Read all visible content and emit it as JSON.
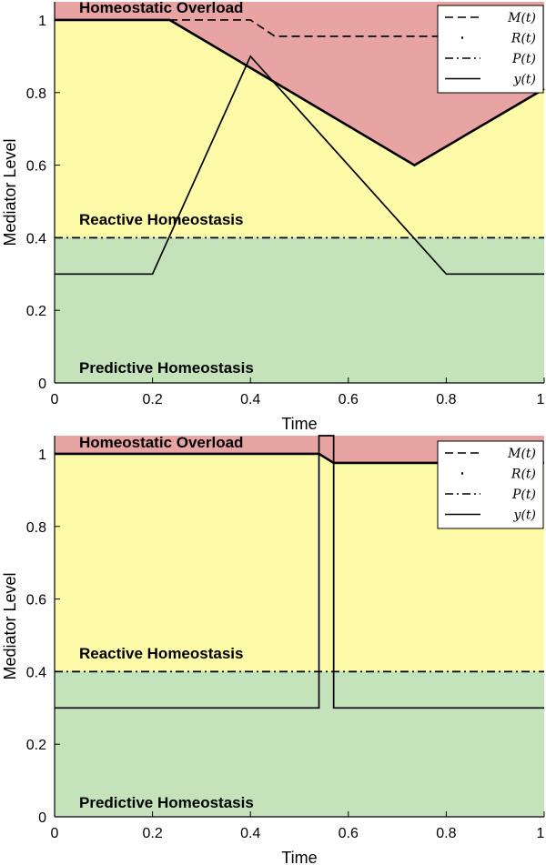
{
  "chart_data": [
    {
      "type": "line",
      "xlabel": "Time",
      "ylabel": "Mediator Level",
      "xlim": [
        0,
        1
      ],
      "ylim": [
        0,
        1.05
      ],
      "xticks": [
        0,
        0.2,
        0.4,
        0.6,
        0.8,
        1
      ],
      "xtick_labels": [
        "0",
        "0.2",
        "0.4",
        "0.6",
        "0.8",
        "1"
      ],
      "yticks": [
        0,
        0.2,
        0.4,
        0.6,
        0.8,
        1
      ],
      "ytick_labels": [
        "0",
        "0.2",
        "0.4",
        "0.6",
        "0.8",
        "1"
      ],
      "regions": [
        {
          "label": "Homeostatic Overload",
          "color": "#e8a3a3"
        },
        {
          "label": "Reactive Homeostasis",
          "color": "#fdfaa8"
        },
        {
          "label": "Predictive Homeostasis",
          "color": "#c4e3bb"
        }
      ],
      "legend": {
        "position": "top-right",
        "entries": [
          {
            "label": "M(t)",
            "style": "dashed"
          },
          {
            "label": "R(t)",
            "style": "dotted"
          },
          {
            "label": "P(t)",
            "style": "dashdot"
          },
          {
            "label": "y(t)",
            "style": "solid"
          }
        ]
      },
      "series": [
        {
          "key": "M",
          "style": "dashed",
          "x": [
            0,
            0.4,
            0.45,
            1
          ],
          "y": [
            1,
            1,
            0.955,
            0.955
          ]
        },
        {
          "key": "R",
          "style": "solid-thick",
          "x": [
            0,
            0.235,
            0.735,
            1
          ],
          "y": [
            1,
            1,
            0.6,
            0.81
          ]
        },
        {
          "key": "P",
          "style": "dashdot",
          "x": [
            0,
            1
          ],
          "y": [
            0.4,
            0.4
          ]
        },
        {
          "key": "y",
          "style": "solid",
          "x": [
            0,
            0.2,
            0.4,
            0.8,
            1
          ],
          "y": [
            0.3,
            0.3,
            0.9,
            0.3,
            0.3
          ]
        }
      ]
    },
    {
      "type": "line",
      "xlabel": "Time",
      "ylabel": "Mediator Level",
      "xlim": [
        0,
        1
      ],
      "ylim": [
        0,
        1.05
      ],
      "xticks": [
        0,
        0.2,
        0.4,
        0.6,
        0.8,
        1
      ],
      "xtick_labels": [
        "0",
        "0.2",
        "0.4",
        "0.6",
        "0.8",
        "1"
      ],
      "yticks": [
        0,
        0.2,
        0.4,
        0.6,
        0.8,
        1
      ],
      "ytick_labels": [
        "0",
        "0.2",
        "0.4",
        "0.6",
        "0.8",
        "1"
      ],
      "regions": [
        {
          "label": "Homeostatic Overload",
          "color": "#e8a3a3"
        },
        {
          "label": "Reactive Homeostasis",
          "color": "#fdfaa8"
        },
        {
          "label": "Predictive Homeostasis",
          "color": "#c4e3bb"
        }
      ],
      "legend": {
        "position": "top-right",
        "entries": [
          {
            "label": "M(t)",
            "style": "dashed"
          },
          {
            "label": "R(t)",
            "style": "dotted"
          },
          {
            "label": "P(t)",
            "style": "dashdot"
          },
          {
            "label": "y(t)",
            "style": "solid"
          }
        ]
      },
      "series": [
        {
          "key": "M",
          "style": "dashed",
          "x": [
            0,
            0.54,
            0.57,
            1
          ],
          "y": [
            1,
            1,
            0.975,
            0.975
          ]
        },
        {
          "key": "R",
          "style": "solid-thick",
          "x": [
            0,
            0.54,
            0.57,
            1
          ],
          "y": [
            1,
            1,
            0.975,
            0.975
          ]
        },
        {
          "key": "P",
          "style": "dashdot",
          "x": [
            0,
            1
          ],
          "y": [
            0.4,
            0.4
          ]
        },
        {
          "key": "y",
          "style": "solid",
          "x": [
            0,
            0.54,
            0.54,
            0.57,
            0.57,
            1
          ],
          "y": [
            0.3,
            0.3,
            1.05,
            1.05,
            0.3,
            0.3
          ]
        }
      ]
    }
  ]
}
